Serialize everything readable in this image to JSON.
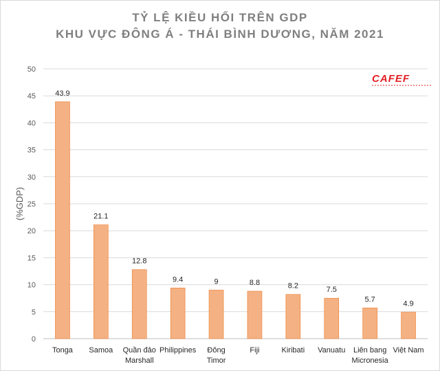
{
  "chart_data": {
    "type": "bar",
    "title": "TỶ LỆ KIỀU HỐI TRÊN GDP",
    "subtitle": "KHU VỰC ĐÔNG Á - THÁI BÌNH DƯƠNG, NĂM 2021",
    "ylabel": "(%GDP)",
    "xlabel": "",
    "ylim": [
      0,
      50
    ],
    "yticks": [
      0,
      5,
      10,
      15,
      20,
      25,
      30,
      35,
      40,
      45,
      50
    ],
    "grid": true,
    "categories": [
      [
        "Tonga"
      ],
      [
        "Samoa"
      ],
      [
        "Quần đảo",
        "Marshall"
      ],
      [
        "Philippines"
      ],
      [
        "Đông",
        "Timor"
      ],
      [
        "Fiji"
      ],
      [
        "Kiribati"
      ],
      [
        "Vanuatu"
      ],
      [
        "Liên bang",
        "Micronesia"
      ],
      [
        "Việt Nam"
      ]
    ],
    "values": [
      43.9,
      21.1,
      12.8,
      9.4,
      9,
      8.8,
      8.2,
      7.5,
      5.7,
      4.9
    ],
    "value_labels": [
      "43.9",
      "21.1",
      "12.8",
      "9.4",
      "9",
      "8.8",
      "8.2",
      "7.5",
      "5.7",
      "4.9"
    ],
    "bar_color": "#f4b183",
    "bar_edge_color": "#ed7d31"
  },
  "watermark": {
    "logo_text": "CAFEF",
    "color": "#e31e24"
  }
}
